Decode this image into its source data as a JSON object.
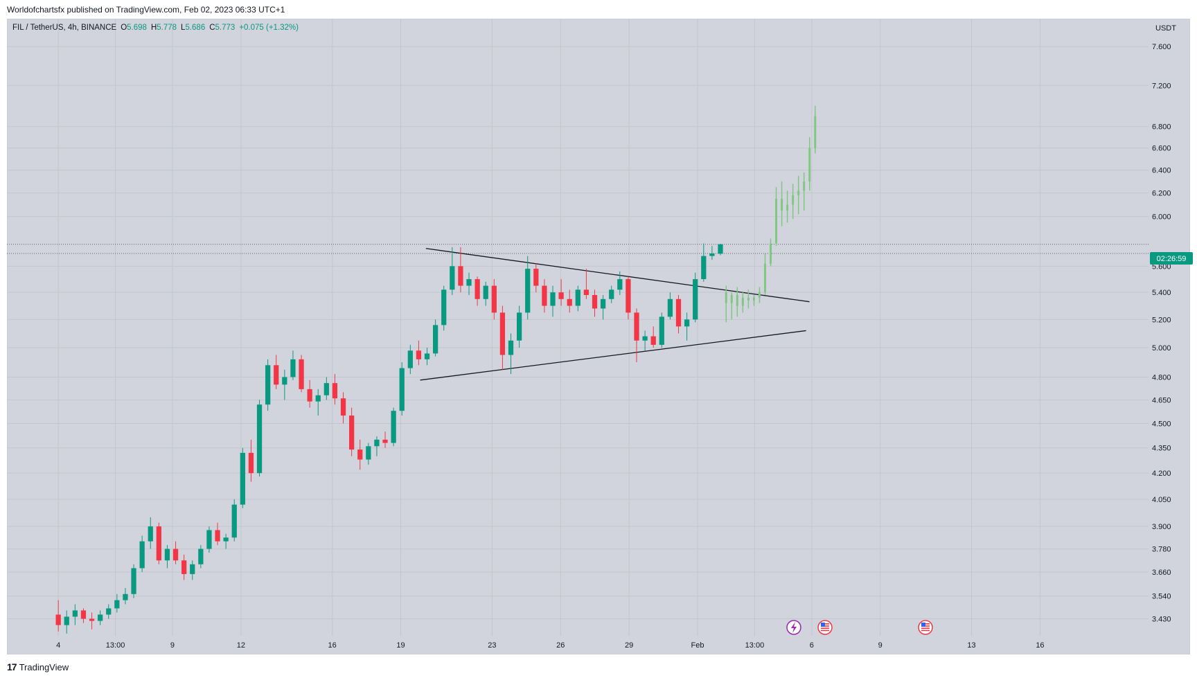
{
  "header": {
    "published": "Worldofchartsfx published on TradingView.com, Feb 02, 2023 06:33 UTC+1"
  },
  "footer": {
    "brand": "TradingView"
  },
  "legend": {
    "symbol": "FIL / TetherUS, 4h, BINANCE",
    "o_label": "O",
    "o": "5.698",
    "h_label": "H",
    "h": "5.778",
    "l_label": "L",
    "l": "5.686",
    "c_label": "C",
    "c": "5.773",
    "change": "+0.075 (+1.32%)"
  },
  "colors": {
    "up": "#089981",
    "down": "#f23645",
    "projection": "#81c784",
    "background": "#d1d4dc",
    "price_badge": "#089981"
  },
  "chart_data": {
    "type": "candlestick",
    "symbol": "FIL / TetherUS",
    "interval": "4h",
    "exchange": "BINANCE",
    "currency": "USDT",
    "y_scale": "log",
    "ylim": [
      3.35,
      7.9
    ],
    "y_ticks": [
      "7.600",
      "7.200",
      "6.800",
      "6.600",
      "6.400",
      "6.200",
      "6.000",
      "5.600",
      "5.400",
      "5.200",
      "5.000",
      "4.800",
      "4.650",
      "4.500",
      "4.350",
      "4.200",
      "4.050",
      "3.900",
      "3.780",
      "3.660",
      "3.540",
      "3.430"
    ],
    "x_ticks": [
      "4",
      "13:00",
      "9",
      "12",
      "16",
      "19",
      "23",
      "26",
      "29",
      "Feb",
      "13:00",
      "6",
      "9",
      "13",
      "16"
    ],
    "current_price": 5.773,
    "countdown_label": "02:26:59",
    "grid": true,
    "trendlines": [
      {
        "name": "upper",
        "points": [
          [
            0.367,
            5.74
          ],
          [
            0.703,
            5.33
          ]
        ]
      },
      {
        "name": "lower",
        "points": [
          [
            0.362,
            4.78
          ],
          [
            0.7,
            5.12
          ]
        ]
      }
    ],
    "series": [
      {
        "name": "",
        "ohlc": [
          [
            3.45,
            3.52,
            3.37,
            3.4
          ],
          [
            3.4,
            3.47,
            3.36,
            3.44
          ],
          [
            3.44,
            3.5,
            3.4,
            3.47
          ],
          [
            3.47,
            3.48,
            3.41,
            3.43
          ],
          [
            3.43,
            3.46,
            3.38,
            3.42
          ],
          [
            3.42,
            3.47,
            3.4,
            3.45
          ],
          [
            3.45,
            3.5,
            3.43,
            3.48
          ],
          [
            3.48,
            3.55,
            3.46,
            3.52
          ],
          [
            3.52,
            3.58,
            3.5,
            3.55
          ],
          [
            3.55,
            3.7,
            3.53,
            3.68
          ],
          [
            3.68,
            3.85,
            3.66,
            3.82
          ],
          [
            3.82,
            3.95,
            3.78,
            3.9
          ],
          [
            3.9,
            3.92,
            3.7,
            3.72
          ],
          [
            3.72,
            3.8,
            3.68,
            3.78
          ],
          [
            3.78,
            3.82,
            3.7,
            3.72
          ],
          [
            3.72,
            3.75,
            3.62,
            3.65
          ],
          [
            3.65,
            3.72,
            3.62,
            3.7
          ],
          [
            3.7,
            3.8,
            3.68,
            3.78
          ],
          [
            3.78,
            3.9,
            3.76,
            3.88
          ],
          [
            3.88,
            3.92,
            3.8,
            3.82
          ],
          [
            3.82,
            3.86,
            3.78,
            3.84
          ],
          [
            3.84,
            4.05,
            3.82,
            4.02
          ],
          [
            4.02,
            4.35,
            4.0,
            4.32
          ],
          [
            4.32,
            4.4,
            4.15,
            4.2
          ],
          [
            4.2,
            4.65,
            4.18,
            4.62
          ],
          [
            4.62,
            4.92,
            4.58,
            4.88
          ],
          [
            4.88,
            4.95,
            4.72,
            4.75
          ],
          [
            4.75,
            4.85,
            4.65,
            4.8
          ],
          [
            4.8,
            4.98,
            4.78,
            4.92
          ],
          [
            4.92,
            4.95,
            4.7,
            4.72
          ],
          [
            4.72,
            4.78,
            4.6,
            4.64
          ],
          [
            4.64,
            4.72,
            4.55,
            4.68
          ],
          [
            4.68,
            4.8,
            4.65,
            4.76
          ],
          [
            4.76,
            4.82,
            4.62,
            4.66
          ],
          [
            4.66,
            4.7,
            4.5,
            4.55
          ],
          [
            4.55,
            4.6,
            4.3,
            4.34
          ],
          [
            4.34,
            4.4,
            4.22,
            4.28
          ],
          [
            4.28,
            4.38,
            4.25,
            4.36
          ],
          [
            4.36,
            4.42,
            4.3,
            4.4
          ],
          [
            4.4,
            4.45,
            4.35,
            4.38
          ],
          [
            4.38,
            4.6,
            4.36,
            4.58
          ],
          [
            4.58,
            4.9,
            4.55,
            4.86
          ],
          [
            4.86,
            5.02,
            4.82,
            4.98
          ],
          [
            4.98,
            5.05,
            4.88,
            4.92
          ],
          [
            4.92,
            5.0,
            4.88,
            4.96
          ],
          [
            4.96,
            5.2,
            4.94,
            5.16
          ],
          [
            5.16,
            5.45,
            5.12,
            5.42
          ],
          [
            5.42,
            5.75,
            5.38,
            5.6
          ],
          [
            5.6,
            5.75,
            5.4,
            5.45
          ],
          [
            5.45,
            5.55,
            5.38,
            5.5
          ],
          [
            5.5,
            5.52,
            5.3,
            5.35
          ],
          [
            5.35,
            5.48,
            5.3,
            5.45
          ],
          [
            5.45,
            5.5,
            5.2,
            5.25
          ],
          [
            5.25,
            5.3,
            4.85,
            4.95
          ],
          [
            4.95,
            5.1,
            4.82,
            5.05
          ],
          [
            5.05,
            5.3,
            5.0,
            5.25
          ],
          [
            5.25,
            5.68,
            5.2,
            5.58
          ],
          [
            5.58,
            5.62,
            5.4,
            5.45
          ],
          [
            5.45,
            5.5,
            5.25,
            5.3
          ],
          [
            5.3,
            5.45,
            5.22,
            5.4
          ],
          [
            5.4,
            5.5,
            5.3,
            5.35
          ],
          [
            5.35,
            5.42,
            5.25,
            5.3
          ],
          [
            5.3,
            5.45,
            5.26,
            5.42
          ],
          [
            5.42,
            5.58,
            5.35,
            5.38
          ],
          [
            5.38,
            5.42,
            5.22,
            5.28
          ],
          [
            5.28,
            5.38,
            5.2,
            5.35
          ],
          [
            5.35,
            5.45,
            5.32,
            5.42
          ],
          [
            5.42,
            5.56,
            5.38,
            5.5
          ],
          [
            5.5,
            5.52,
            5.2,
            5.25
          ],
          [
            5.25,
            5.28,
            4.9,
            5.05
          ],
          [
            5.05,
            5.12,
            4.98,
            5.08
          ],
          [
            5.08,
            5.15,
            5.0,
            5.02
          ],
          [
            5.02,
            5.25,
            5.0,
            5.22
          ],
          [
            5.22,
            5.4,
            5.2,
            5.35
          ],
          [
            5.35,
            5.38,
            5.1,
            5.15
          ],
          [
            5.15,
            5.25,
            5.05,
            5.2
          ],
          [
            5.2,
            5.55,
            5.18,
            5.5
          ],
          [
            5.5,
            5.78,
            5.48,
            5.68
          ],
          [
            5.68,
            5.76,
            5.65,
            5.7
          ],
          [
            5.698,
            5.778,
            5.686,
            5.773
          ]
        ]
      },
      {
        "name": "",
        "ohlc": [
          [
            5.4,
            5.45,
            5.18,
            5.32
          ],
          [
            5.32,
            5.4,
            5.2,
            5.38
          ],
          [
            5.38,
            5.44,
            5.22,
            5.3
          ],
          [
            5.3,
            5.4,
            5.25,
            5.36
          ],
          [
            5.36,
            5.42,
            5.28,
            5.34
          ],
          [
            5.34,
            5.38,
            5.3,
            5.36
          ],
          [
            5.36,
            5.44,
            5.32,
            5.4
          ],
          [
            5.4,
            5.7,
            5.38,
            5.62
          ],
          [
            5.62,
            5.82,
            5.6,
            5.78
          ],
          [
            5.78,
            6.25,
            5.76,
            6.15
          ],
          [
            6.15,
            6.3,
            5.92,
            6.05
          ],
          [
            6.05,
            6.22,
            5.95,
            6.1
          ],
          [
            6.1,
            6.28,
            5.98,
            6.18
          ],
          [
            6.18,
            6.35,
            6.02,
            6.22
          ],
          [
            6.22,
            6.38,
            6.05,
            6.3
          ],
          [
            6.3,
            6.7,
            6.22,
            6.6
          ],
          [
            6.6,
            7.0,
            6.55,
            6.9
          ]
        ]
      }
    ]
  }
}
